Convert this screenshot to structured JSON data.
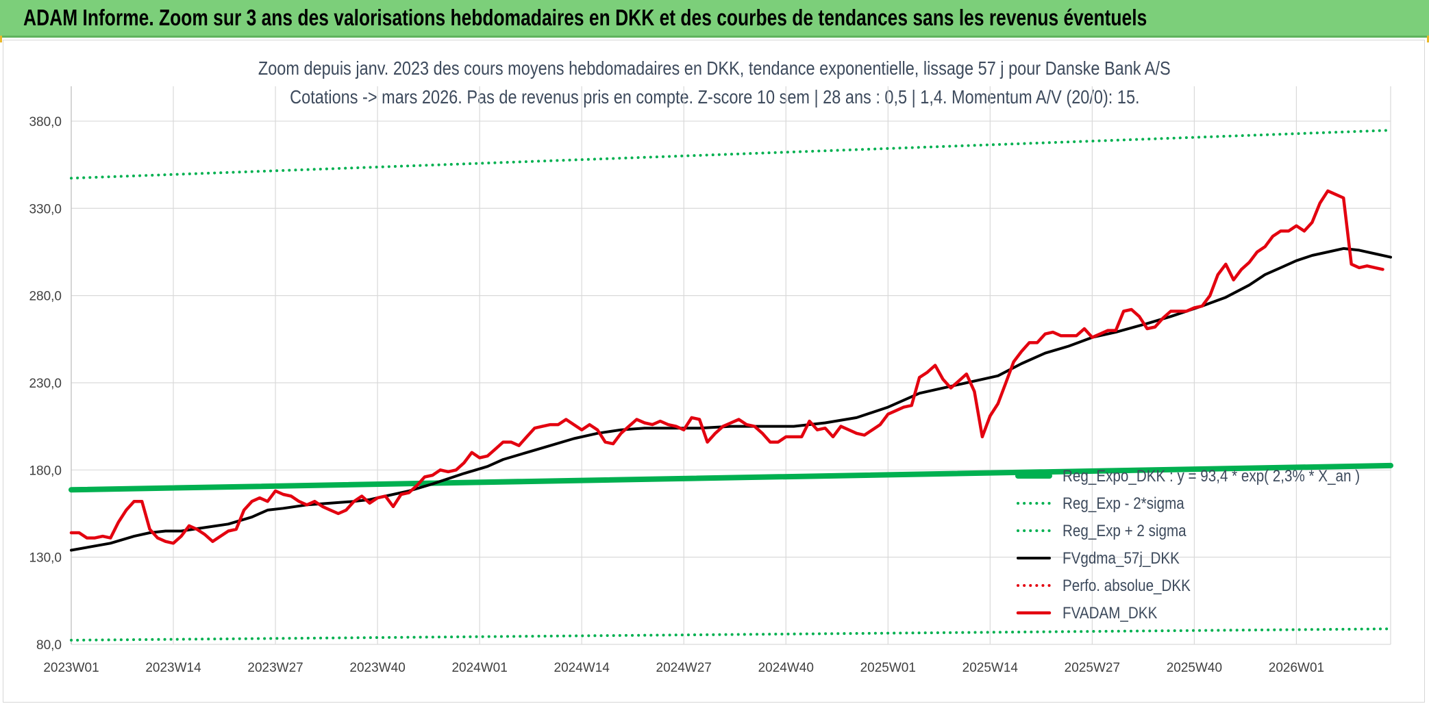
{
  "banner": {
    "title": "ADAM Informe. Zoom sur 3 ans des valorisations hebdomadaires en DKK et des courbes de tendances sans les revenus éventuels"
  },
  "colors": {
    "banner_bg": "#7ccf7a",
    "trend_green": "#00b050",
    "fvadam_red": "#e3000f",
    "gdma_black": "#000000"
  },
  "chart_data": {
    "type": "line",
    "title": "Zoom depuis janv. 2023 des cours moyens hebdomadaires en DKK, tendance exponentielle, lissage 57 j pour Danske Bank A/S",
    "subtitle": "Cotations -> mars 2026. Pas de revenus pris en compte. Z-score 10 sem | 28 ans : 0,5 | 1,4. Momentum A/V (20/0): 15.",
    "x_tick_labels": [
      "2023W01",
      "2023W14",
      "2023W27",
      "2023W40",
      "2024W01",
      "2024W14",
      "2024W27",
      "2024W40",
      "2025W01",
      "2025W14",
      "2025W27",
      "2025W40",
      "2026W01"
    ],
    "y_tick_labels": [
      "80,0",
      "130,0",
      "180,0",
      "230,0",
      "280,0",
      "330,0",
      "380,0"
    ],
    "ylim": [
      80,
      400
    ],
    "x_range_weeks": [
      0,
      168
    ],
    "grid": true,
    "legend_position": "right",
    "series": [
      {
        "name": "Reg_Expo_DKK : y = 93,4 * exp( 2,3% * X_an )",
        "style": "thick-solid",
        "color": "#00b050",
        "points": [
          [
            0,
            168.6
          ],
          [
            168,
            182.5
          ]
        ]
      },
      {
        "name": "Reg_Exp - 2*sigma",
        "style": "dotted",
        "color": "#00b050",
        "points": [
          [
            0,
            82.4
          ],
          [
            168,
            88.9
          ]
        ]
      },
      {
        "name": "Reg_Exp + 2 sigma",
        "style": "dotted",
        "color": "#00b050",
        "points": [
          [
            0,
            347.3
          ],
          [
            168,
            374.8
          ]
        ]
      },
      {
        "name": "FVgdma_57j_DKK",
        "style": "solid",
        "color": "#000000",
        "points": [
          [
            0,
            134
          ],
          [
            5,
            138
          ],
          [
            8,
            142
          ],
          [
            10,
            144
          ],
          [
            12,
            145
          ],
          [
            14,
            145
          ],
          [
            17,
            147
          ],
          [
            20,
            149
          ],
          [
            23,
            153
          ],
          [
            25,
            157
          ],
          [
            27,
            158
          ],
          [
            30,
            160
          ],
          [
            33,
            161
          ],
          [
            36,
            162
          ],
          [
            38,
            163
          ],
          [
            40,
            165
          ],
          [
            43,
            168
          ],
          [
            46,
            172
          ],
          [
            50,
            178
          ],
          [
            53,
            182
          ],
          [
            55,
            186
          ],
          [
            58,
            190
          ],
          [
            61,
            194
          ],
          [
            64,
            198
          ],
          [
            67,
            201
          ],
          [
            70,
            203
          ],
          [
            73,
            204
          ],
          [
            76,
            204
          ],
          [
            80,
            204
          ],
          [
            84,
            205
          ],
          [
            88,
            205
          ],
          [
            92,
            205
          ],
          [
            96,
            207
          ],
          [
            100,
            210
          ],
          [
            104,
            216
          ],
          [
            108,
            224
          ],
          [
            112,
            228
          ],
          [
            116,
            232
          ],
          [
            118,
            234
          ],
          [
            121,
            241
          ],
          [
            124,
            247
          ],
          [
            127,
            251
          ],
          [
            130,
            256
          ],
          [
            133,
            259
          ],
          [
            137,
            264
          ],
          [
            140,
            268
          ],
          [
            144,
            274
          ],
          [
            147,
            279
          ],
          [
            150,
            286
          ],
          [
            152,
            292
          ],
          [
            154,
            296
          ],
          [
            156,
            300
          ],
          [
            158,
            303
          ],
          [
            160,
            305
          ],
          [
            162,
            307
          ],
          [
            164,
            306
          ],
          [
            166,
            304
          ],
          [
            168,
            302
          ]
        ]
      },
      {
        "name": "Perfo. absolue_DKK",
        "style": "dotted",
        "color": "#e3000f",
        "points": []
      },
      {
        "name": "FVADAM_DKK",
        "style": "thick-solid",
        "color": "#e3000f",
        "points": [
          [
            0,
            144
          ],
          [
            1,
            144
          ],
          [
            2,
            141
          ],
          [
            3,
            141
          ],
          [
            4,
            142
          ],
          [
            5,
            141
          ],
          [
            6,
            150
          ],
          [
            7,
            157
          ],
          [
            8,
            162
          ],
          [
            9,
            162
          ],
          [
            10,
            146
          ],
          [
            11,
            141
          ],
          [
            12,
            139
          ],
          [
            13,
            138
          ],
          [
            14,
            142
          ],
          [
            15,
            148
          ],
          [
            16,
            146
          ],
          [
            17,
            143
          ],
          [
            18,
            139
          ],
          [
            19,
            142
          ],
          [
            20,
            145
          ],
          [
            21,
            146
          ],
          [
            22,
            157
          ],
          [
            23,
            162
          ],
          [
            24,
            164
          ],
          [
            25,
            162
          ],
          [
            26,
            168
          ],
          [
            27,
            166
          ],
          [
            28,
            165
          ],
          [
            29,
            162
          ],
          [
            30,
            160
          ],
          [
            31,
            162
          ],
          [
            32,
            159
          ],
          [
            33,
            157
          ],
          [
            34,
            155
          ],
          [
            35,
            157
          ],
          [
            36,
            162
          ],
          [
            37,
            165
          ],
          [
            38,
            161
          ],
          [
            39,
            164
          ],
          [
            40,
            165
          ],
          [
            41,
            159
          ],
          [
            42,
            166
          ],
          [
            43,
            167
          ],
          [
            44,
            171
          ],
          [
            45,
            176
          ],
          [
            46,
            177
          ],
          [
            47,
            180
          ],
          [
            48,
            179
          ],
          [
            49,
            180
          ],
          [
            50,
            184
          ],
          [
            51,
            190
          ],
          [
            52,
            187
          ],
          [
            53,
            188
          ],
          [
            54,
            192
          ],
          [
            55,
            196
          ],
          [
            56,
            196
          ],
          [
            57,
            194
          ],
          [
            58,
            199
          ],
          [
            59,
            204
          ],
          [
            60,
            205
          ],
          [
            61,
            206
          ],
          [
            62,
            206
          ],
          [
            63,
            209
          ],
          [
            64,
            206
          ],
          [
            65,
            203
          ],
          [
            66,
            206
          ],
          [
            67,
            203
          ],
          [
            68,
            196
          ],
          [
            69,
            195
          ],
          [
            70,
            201
          ],
          [
            71,
            205
          ],
          [
            72,
            209
          ],
          [
            73,
            207
          ],
          [
            74,
            206
          ],
          [
            75,
            208
          ],
          [
            76,
            206
          ],
          [
            77,
            205
          ],
          [
            78,
            203
          ],
          [
            79,
            210
          ],
          [
            80,
            209
          ],
          [
            81,
            196
          ],
          [
            82,
            201
          ],
          [
            83,
            205
          ],
          [
            84,
            207
          ],
          [
            85,
            209
          ],
          [
            86,
            206
          ],
          [
            87,
            205
          ],
          [
            88,
            201
          ],
          [
            89,
            196
          ],
          [
            90,
            196
          ],
          [
            91,
            199
          ],
          [
            92,
            199
          ],
          [
            93,
            199
          ],
          [
            94,
            208
          ],
          [
            95,
            203
          ],
          [
            96,
            204
          ],
          [
            97,
            199
          ],
          [
            98,
            205
          ],
          [
            99,
            203
          ],
          [
            100,
            201
          ],
          [
            101,
            200
          ],
          [
            102,
            203
          ],
          [
            103,
            206
          ],
          [
            104,
            212
          ],
          [
            105,
            214
          ],
          [
            106,
            216
          ],
          [
            107,
            217
          ],
          [
            108,
            233
          ],
          [
            109,
            236
          ],
          [
            110,
            240
          ],
          [
            111,
            232
          ],
          [
            112,
            227
          ],
          [
            113,
            231
          ],
          [
            114,
            235
          ],
          [
            115,
            225
          ],
          [
            116,
            199
          ],
          [
            117,
            211
          ],
          [
            118,
            218
          ],
          [
            119,
            230
          ],
          [
            120,
            242
          ],
          [
            121,
            248
          ],
          [
            122,
            253
          ],
          [
            123,
            253
          ],
          [
            124,
            258
          ],
          [
            125,
            259
          ],
          [
            126,
            257
          ],
          [
            127,
            257
          ],
          [
            128,
            257
          ],
          [
            129,
            261
          ],
          [
            130,
            256
          ],
          [
            131,
            258
          ],
          [
            132,
            260
          ],
          [
            133,
            260
          ],
          [
            134,
            271
          ],
          [
            135,
            272
          ],
          [
            136,
            268
          ],
          [
            137,
            261
          ],
          [
            138,
            262
          ],
          [
            139,
            267
          ],
          [
            140,
            271
          ],
          [
            141,
            271
          ],
          [
            142,
            271
          ],
          [
            143,
            273
          ],
          [
            144,
            274
          ],
          [
            145,
            280
          ],
          [
            146,
            292
          ],
          [
            147,
            298
          ],
          [
            148,
            289
          ],
          [
            149,
            295
          ],
          [
            150,
            299
          ],
          [
            151,
            305
          ],
          [
            152,
            308
          ],
          [
            153,
            314
          ],
          [
            154,
            317
          ],
          [
            155,
            317
          ],
          [
            156,
            320
          ],
          [
            157,
            317
          ],
          [
            158,
            322
          ],
          [
            159,
            333
          ],
          [
            160,
            340
          ],
          [
            161,
            338
          ],
          [
            162,
            336
          ],
          [
            163,
            298
          ],
          [
            164,
            296
          ],
          [
            165,
            297
          ],
          [
            166,
            296
          ],
          [
            167,
            295
          ]
        ]
      }
    ]
  }
}
